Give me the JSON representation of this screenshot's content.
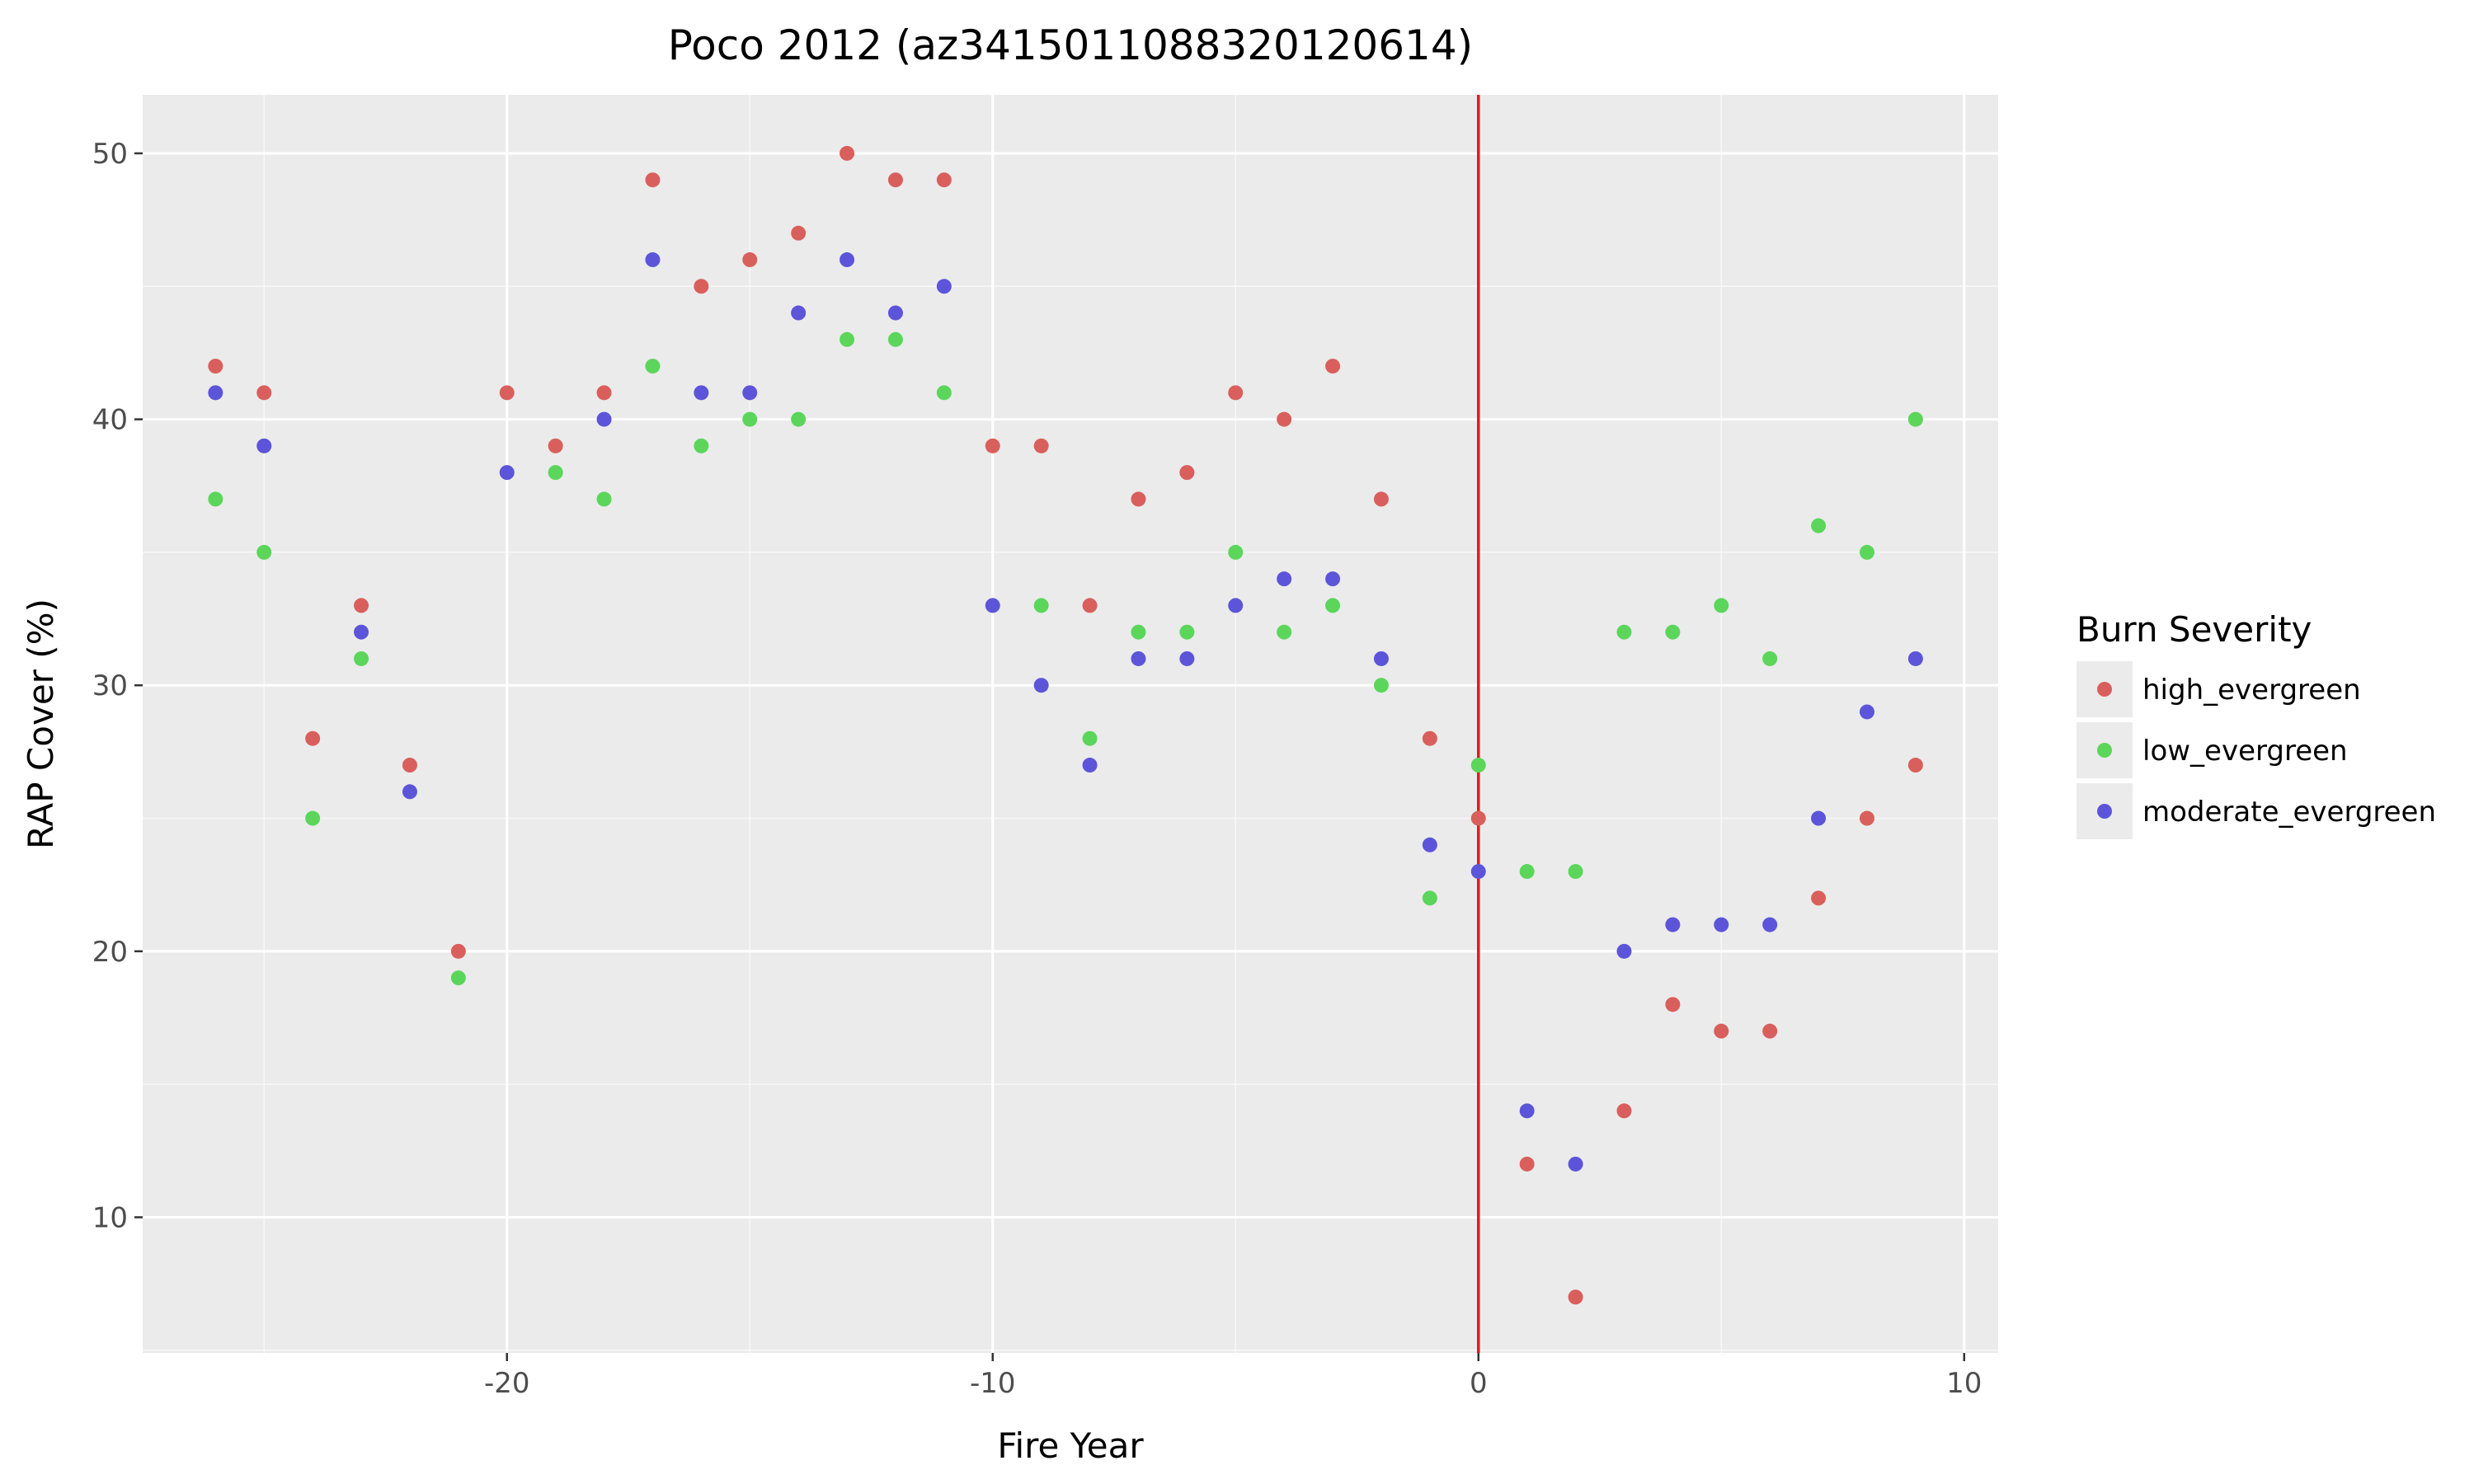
{
  "chart_data": {
    "type": "scatter",
    "title": "Poco 2012 (az3415011088320120614)",
    "xlabel": "Fire Year",
    "ylabel": "RAP Cover (%)",
    "xlim": [
      -27.5,
      10.7
    ],
    "ylim": [
      4.9,
      52.2
    ],
    "xticks": [
      -20,
      -10,
      0,
      10
    ],
    "xtick_labels": [
      "-20",
      "-10",
      "0",
      "10"
    ],
    "yticks": [
      10,
      20,
      30,
      40,
      50
    ],
    "ytick_labels": [
      "10",
      "20",
      "30",
      "40",
      "50"
    ],
    "grid": true,
    "background": "#ebebeb",
    "vline": {
      "x": 0,
      "color": "#e41a1c"
    },
    "legend": {
      "title": "Burn Severity",
      "position": "right"
    },
    "series": [
      {
        "name": "high_evergreen",
        "color": "#d95f5c",
        "x": [
          -26,
          -25,
          -24,
          -23,
          -22,
          -21,
          -20,
          -19,
          -18,
          -17,
          -16,
          -15,
          -14,
          -13,
          -12,
          -11,
          -10,
          -9,
          -8,
          -7,
          -6,
          -5,
          -4,
          -3,
          -2,
          -1,
          0,
          1,
          2,
          3,
          4,
          5,
          6,
          7,
          8,
          9
        ],
        "y": [
          42,
          41,
          28,
          33,
          27,
          20,
          41,
          39,
          41,
          49,
          45,
          46,
          47,
          50,
          49,
          49,
          39,
          39,
          33,
          37,
          38,
          41,
          40,
          42,
          37,
          28,
          25,
          12,
          7,
          14,
          18,
          17,
          17,
          22,
          25,
          27
        ]
      },
      {
        "name": "low_evergreen",
        "color": "#5bd65b",
        "x": [
          -26,
          -25,
          -24,
          -23,
          -21,
          -19,
          -18,
          -17,
          -16,
          -15,
          -14,
          -13,
          -12,
          -11,
          -9,
          -8,
          -7,
          -6,
          -5,
          -4,
          -3,
          -2,
          -1,
          0,
          1,
          2,
          3,
          4,
          5,
          6,
          7,
          8,
          9
        ],
        "y": [
          37,
          35,
          25,
          31,
          19,
          38,
          37,
          42,
          39,
          40,
          40,
          43,
          43,
          41,
          33,
          28,
          32,
          32,
          35,
          32,
          33,
          30,
          22,
          27,
          23,
          23,
          32,
          32,
          33,
          31,
          36,
          35,
          40
        ]
      },
      {
        "name": "moderate_evergreen",
        "color": "#5c55d9",
        "x": [
          -26,
          -25,
          -23,
          -22,
          -20,
          -18,
          -17,
          -16,
          -15,
          -14,
          -13,
          -12,
          -11,
          -10,
          -9,
          -8,
          -7,
          -6,
          -5,
          -4,
          -3,
          -2,
          -1,
          0,
          1,
          2,
          3,
          4,
          5,
          6,
          7,
          8,
          9
        ],
        "y": [
          41,
          39,
          32,
          26,
          38,
          40,
          46,
          41,
          41,
          44,
          46,
          44,
          45,
          33,
          30,
          27,
          31,
          31,
          33,
          34,
          34,
          31,
          24,
          23,
          14,
          12,
          20,
          21,
          21,
          21,
          25,
          29,
          31
        ]
      }
    ]
  }
}
